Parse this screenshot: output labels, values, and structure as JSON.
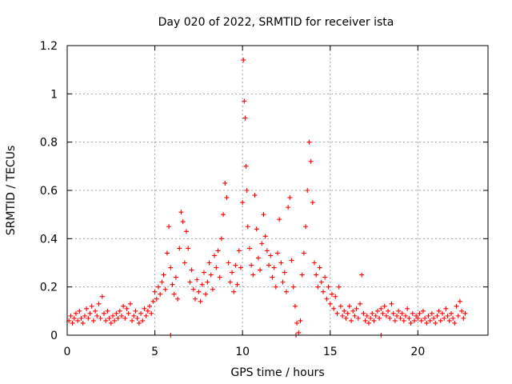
{
  "chart_data": {
    "type": "scatter",
    "title": "Day 020 of 2022, SRMTID for receiver ista",
    "xlabel": "GPS time / hours",
    "ylabel": "SRMTID / TECUs",
    "xlim": [
      0,
      24
    ],
    "ylim": [
      0,
      1.2
    ],
    "x_ticks": [
      0,
      5,
      10,
      15,
      20
    ],
    "x_tick_labels": [
      "0",
      "5",
      "10",
      "15",
      "20"
    ],
    "y_ticks": [
      0,
      0.2,
      0.4,
      0.6,
      0.8,
      1.0,
      1.2
    ],
    "y_tick_labels": [
      "0",
      "0.2",
      "0.4",
      "0.6",
      "0.8",
      "1",
      "1.2"
    ],
    "grid": true,
    "marker": "+",
    "marker_color": "#ff0000",
    "series": [
      {
        "name": "SRMTID",
        "points": [
          [
            0.1,
            0.06
          ],
          [
            0.2,
            0.08
          ],
          [
            0.3,
            0.05
          ],
          [
            0.4,
            0.07
          ],
          [
            0.5,
            0.09
          ],
          [
            0.6,
            0.06
          ],
          [
            0.7,
            0.1
          ],
          [
            0.8,
            0.07
          ],
          [
            0.9,
            0.05
          ],
          [
            1.0,
            0.08
          ],
          [
            1.1,
            0.11
          ],
          [
            1.2,
            0.07
          ],
          [
            1.3,
            0.09
          ],
          [
            1.4,
            0.12
          ],
          [
            1.5,
            0.06
          ],
          [
            1.6,
            0.1
          ],
          [
            1.7,
            0.08
          ],
          [
            1.8,
            0.13
          ],
          [
            1.9,
            0.07
          ],
          [
            2.0,
            0.16
          ],
          [
            2.1,
            0.09
          ],
          [
            2.2,
            0.06
          ],
          [
            2.3,
            0.1
          ],
          [
            2.4,
            0.07
          ],
          [
            2.5,
            0.05
          ],
          [
            2.6,
            0.08
          ],
          [
            2.7,
            0.06
          ],
          [
            2.8,
            0.09
          ],
          [
            2.9,
            0.07
          ],
          [
            3.0,
            0.1
          ],
          [
            3.1,
            0.08
          ],
          [
            3.2,
            0.12
          ],
          [
            3.3,
            0.07
          ],
          [
            3.4,
            0.11
          ],
          [
            3.5,
            0.09
          ],
          [
            3.6,
            0.13
          ],
          [
            3.7,
            0.06
          ],
          [
            3.8,
            0.08
          ],
          [
            3.9,
            0.1
          ],
          [
            4.0,
            0.07
          ],
          [
            4.1,
            0.05
          ],
          [
            4.2,
            0.09
          ],
          [
            4.3,
            0.06
          ],
          [
            4.4,
            0.11
          ],
          [
            4.5,
            0.08
          ],
          [
            4.6,
            0.1
          ],
          [
            4.7,
            0.12
          ],
          [
            4.8,
            0.09
          ],
          [
            4.9,
            0.14
          ],
          [
            5.0,
            0.18
          ],
          [
            5.1,
            0.15
          ],
          [
            5.2,
            0.2
          ],
          [
            5.3,
            0.17
          ],
          [
            5.4,
            0.22
          ],
          [
            5.5,
            0.25
          ],
          [
            5.6,
            0.19
          ],
          [
            5.7,
            0.34
          ],
          [
            5.8,
            0.45
          ],
          [
            5.9,
            0.28
          ],
          [
            6.0,
            0.21
          ],
          [
            6.1,
            0.17
          ],
          [
            6.2,
            0.24
          ],
          [
            6.3,
            0.15
          ],
          [
            6.4,
            0.36
          ],
          [
            6.5,
            0.51
          ],
          [
            6.6,
            0.47
          ],
          [
            6.7,
            0.3
          ],
          [
            6.8,
            0.43
          ],
          [
            6.9,
            0.36
          ],
          [
            7.0,
            0.22
          ],
          [
            7.1,
            0.27
          ],
          [
            7.2,
            0.19
          ],
          [
            7.3,
            0.15
          ],
          [
            7.4,
            0.23
          ],
          [
            7.5,
            0.18
          ],
          [
            7.6,
            0.14
          ],
          [
            7.7,
            0.21
          ],
          [
            7.8,
            0.26
          ],
          [
            7.9,
            0.17
          ],
          [
            8.0,
            0.22
          ],
          [
            8.1,
            0.3
          ],
          [
            8.2,
            0.25
          ],
          [
            8.3,
            0.19
          ],
          [
            8.4,
            0.33
          ],
          [
            8.5,
            0.28
          ],
          [
            8.6,
            0.35
          ],
          [
            8.7,
            0.24
          ],
          [
            8.8,
            0.4
          ],
          [
            8.9,
            0.5
          ],
          [
            9.0,
            0.63
          ],
          [
            9.1,
            0.57
          ],
          [
            9.2,
            0.3
          ],
          [
            9.3,
            0.22
          ],
          [
            9.4,
            0.26
          ],
          [
            9.5,
            0.18
          ],
          [
            9.6,
            0.29
          ],
          [
            9.7,
            0.21
          ],
          [
            9.8,
            0.35
          ],
          [
            9.9,
            0.28
          ],
          [
            10.0,
            0.55
          ],
          [
            10.05,
            1.14
          ],
          [
            10.1,
            0.97
          ],
          [
            10.15,
            0.9
          ],
          [
            10.2,
            0.7
          ],
          [
            10.25,
            0.6
          ],
          [
            10.3,
            0.45
          ],
          [
            10.4,
            0.36
          ],
          [
            10.5,
            0.29
          ],
          [
            10.6,
            0.25
          ],
          [
            10.7,
            0.58
          ],
          [
            10.8,
            0.44
          ],
          [
            10.9,
            0.32
          ],
          [
            11.0,
            0.27
          ],
          [
            11.1,
            0.38
          ],
          [
            11.2,
            0.5
          ],
          [
            11.3,
            0.41
          ],
          [
            11.4,
            0.35
          ],
          [
            11.5,
            0.29
          ],
          [
            11.6,
            0.33
          ],
          [
            11.7,
            0.24
          ],
          [
            11.8,
            0.28
          ],
          [
            11.9,
            0.2
          ],
          [
            12.0,
            0.34
          ],
          [
            12.1,
            0.48
          ],
          [
            12.2,
            0.3
          ],
          [
            12.3,
            0.22
          ],
          [
            12.4,
            0.26
          ],
          [
            12.5,
            0.18
          ],
          [
            12.6,
            0.53
          ],
          [
            12.7,
            0.57
          ],
          [
            12.8,
            0.31
          ],
          [
            12.9,
            0.2
          ],
          [
            13.0,
            0.12
          ],
          [
            13.1,
            0.05
          ],
          [
            13.2,
            0.01
          ],
          [
            13.3,
            0.06
          ],
          [
            13.4,
            0.25
          ],
          [
            13.5,
            0.34
          ],
          [
            13.6,
            0.45
          ],
          [
            13.7,
            0.6
          ],
          [
            13.8,
            0.8
          ],
          [
            13.9,
            0.72
          ],
          [
            14.0,
            0.55
          ],
          [
            14.1,
            0.3
          ],
          [
            14.2,
            0.25
          ],
          [
            14.3,
            0.2
          ],
          [
            14.4,
            0.28
          ],
          [
            14.5,
            0.22
          ],
          [
            14.6,
            0.18
          ],
          [
            14.7,
            0.24
          ],
          [
            14.8,
            0.15
          ],
          [
            14.9,
            0.2
          ],
          [
            15.0,
            0.13
          ],
          [
            15.1,
            0.17
          ],
          [
            15.2,
            0.11
          ],
          [
            15.3,
            0.16
          ],
          [
            15.4,
            0.09
          ],
          [
            15.5,
            0.2
          ],
          [
            15.6,
            0.12
          ],
          [
            15.7,
            0.08
          ],
          [
            15.8,
            0.1
          ],
          [
            15.9,
            0.07
          ],
          [
            16.0,
            0.09
          ],
          [
            16.1,
            0.12
          ],
          [
            16.2,
            0.06
          ],
          [
            16.3,
            0.1
          ],
          [
            16.4,
            0.08
          ],
          [
            16.5,
            0.11
          ],
          [
            16.6,
            0.07
          ],
          [
            16.7,
            0.13
          ],
          [
            16.8,
            0.25
          ],
          [
            16.9,
            0.09
          ],
          [
            17.0,
            0.06
          ],
          [
            17.1,
            0.08
          ],
          [
            17.2,
            0.05
          ],
          [
            17.3,
            0.07
          ],
          [
            17.4,
            0.09
          ],
          [
            17.5,
            0.06
          ],
          [
            17.6,
            0.08
          ],
          [
            17.7,
            0.1
          ],
          [
            17.8,
            0.07
          ],
          [
            17.9,
            0.11
          ],
          [
            18.0,
            0.09
          ],
          [
            18.1,
            0.12
          ],
          [
            18.2,
            0.08
          ],
          [
            18.3,
            0.1
          ],
          [
            18.4,
            0.07
          ],
          [
            18.5,
            0.13
          ],
          [
            18.6,
            0.09
          ],
          [
            18.7,
            0.06
          ],
          [
            18.8,
            0.08
          ],
          [
            18.9,
            0.1
          ],
          [
            19.0,
            0.07
          ],
          [
            19.1,
            0.09
          ],
          [
            19.2,
            0.06
          ],
          [
            19.3,
            0.08
          ],
          [
            19.4,
            0.11
          ],
          [
            19.5,
            0.07
          ],
          [
            19.6,
            0.05
          ],
          [
            19.7,
            0.09
          ],
          [
            19.8,
            0.06
          ],
          [
            19.9,
            0.08
          ],
          [
            20.0,
            0.07
          ],
          [
            20.1,
            0.09
          ],
          [
            20.2,
            0.06
          ],
          [
            20.3,
            0.1
          ],
          [
            20.4,
            0.07
          ],
          [
            20.5,
            0.05
          ],
          [
            20.6,
            0.08
          ],
          [
            20.7,
            0.06
          ],
          [
            20.8,
            0.09
          ],
          [
            20.9,
            0.07
          ],
          [
            21.0,
            0.05
          ],
          [
            21.1,
            0.08
          ],
          [
            21.2,
            0.1
          ],
          [
            21.3,
            0.06
          ],
          [
            21.4,
            0.09
          ],
          [
            21.5,
            0.07
          ],
          [
            21.6,
            0.11
          ],
          [
            21.7,
            0.08
          ],
          [
            21.8,
            0.06
          ],
          [
            21.9,
            0.09
          ],
          [
            22.0,
            0.07
          ],
          [
            22.1,
            0.05
          ],
          [
            22.2,
            0.12
          ],
          [
            22.3,
            0.08
          ],
          [
            22.4,
            0.14
          ],
          [
            22.5,
            0.1
          ],
          [
            22.6,
            0.07
          ],
          [
            22.7,
            0.09
          ],
          [
            5.9,
            0.0
          ],
          [
            17.9,
            0.0
          ],
          [
            13.05,
            0.0
          ]
        ]
      }
    ]
  }
}
